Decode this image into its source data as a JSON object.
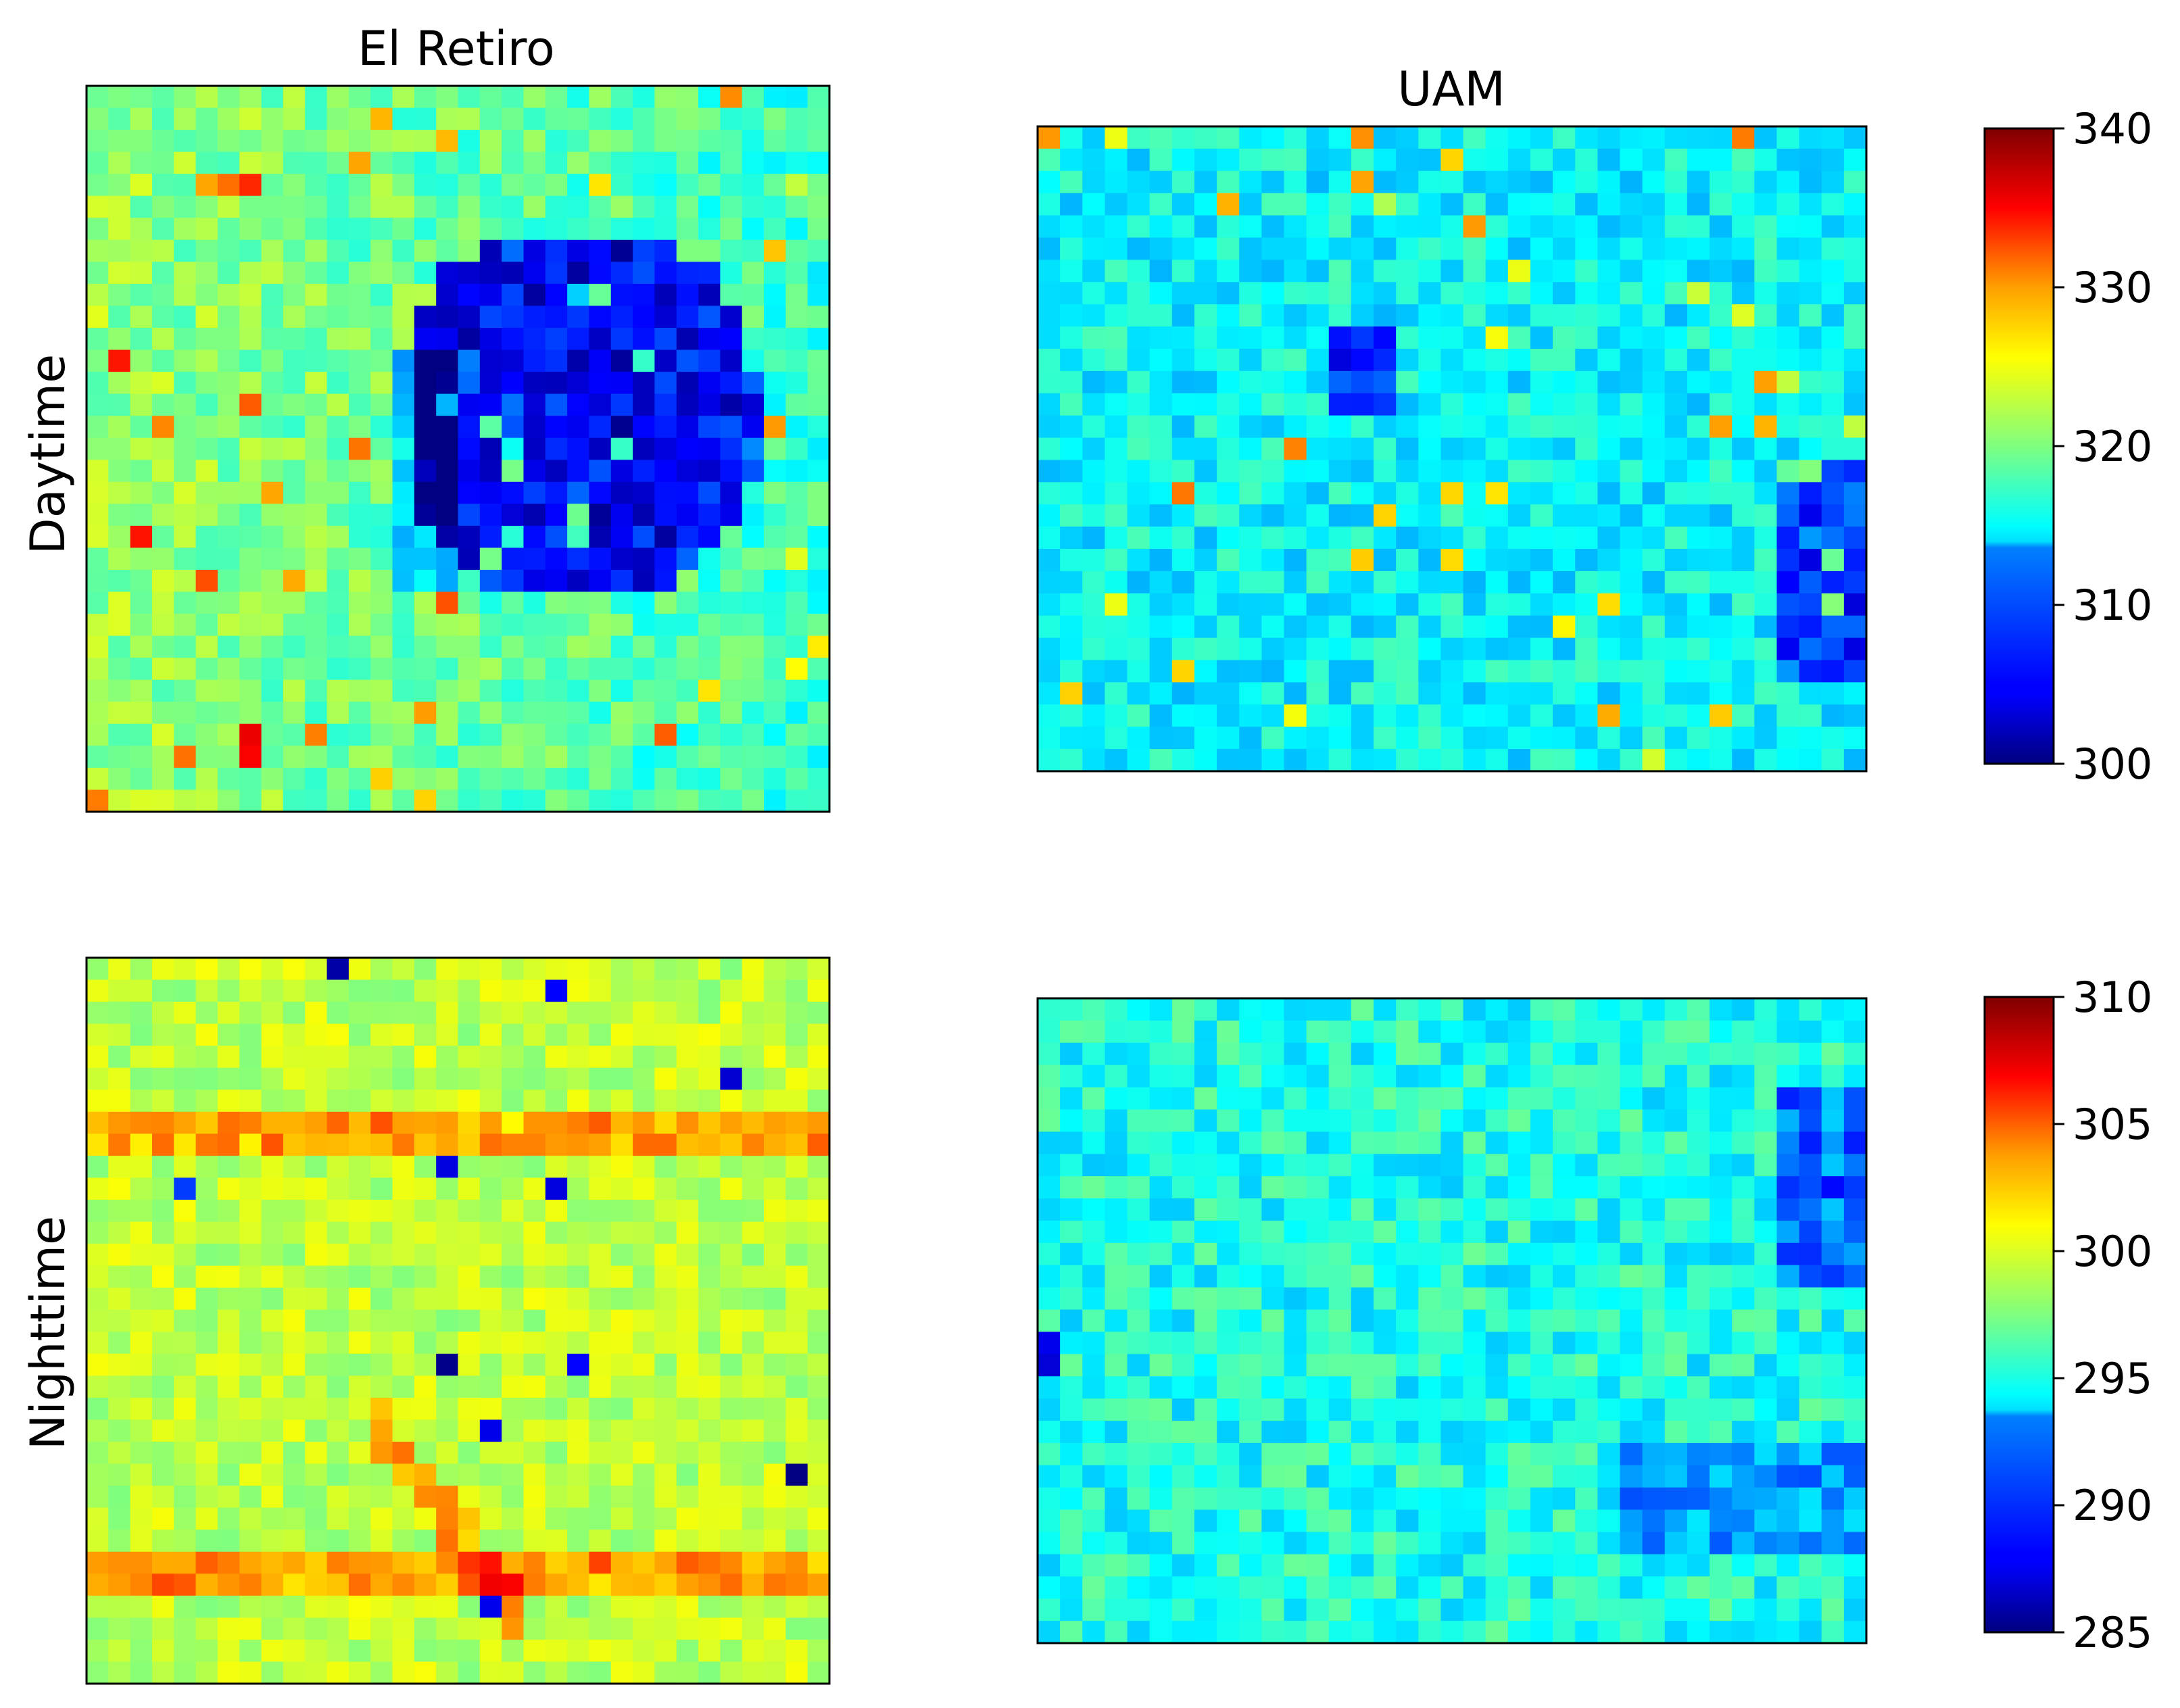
{
  "figure": {
    "col_titles": [
      "El Retiro",
      "UAM"
    ],
    "row_labels": [
      "Daytime",
      "Nighttime"
    ]
  },
  "chart_data": [
    {
      "type": "heatmap",
      "title": "El Retiro",
      "row_label": "Daytime",
      "colormap": "jet",
      "grid_size": [
        34,
        33
      ],
      "vmin": 300,
      "vmax": 340,
      "pattern": "cool park region (~302-308) in center-right surrounded by warmer urban pixels (~317-326) with scattered hot spots up to ~332",
      "cool_region": {
        "x_fraction": [
          0.43,
          0.9
        ],
        "y_fraction": [
          0.2,
          0.7
        ],
        "value": 305
      },
      "background_value": 319
    },
    {
      "type": "heatmap",
      "title": "UAM",
      "colormap": "jet",
      "grid_size": [
        37,
        29
      ],
      "vmin": 300,
      "vmax": 340,
      "pattern": "mostly ~312-319 with cooler patches on the right edge (~306) and a few warm spots (~328)",
      "background_value": 315
    },
    {
      "type": "heatmap",
      "row_label": "Nighttime",
      "colormap": "jet",
      "grid_size": [
        34,
        33
      ],
      "vmin": 285,
      "vmax": 310,
      "pattern": "mostly ~298-301 with warm linear streets (~303-305) and a few cold pixels (~286)",
      "background_value": 299
    },
    {
      "type": "heatmap",
      "colormap": "jet",
      "grid_size": [
        37,
        29
      ],
      "vmin": 285,
      "vmax": 310,
      "pattern": "mostly ~293-297 with cooler patches (~289-291) near edges and one cold block on the left (~286)",
      "background_value": 295
    }
  ],
  "colorbars": [
    {
      "vmin": 300,
      "vmax": 340,
      "ticks": [
        "300",
        "310",
        "320",
        "330",
        "340"
      ]
    },
    {
      "vmin": 285,
      "vmax": 310,
      "ticks": [
        "285",
        "290",
        "295",
        "300",
        "305",
        "310"
      ]
    }
  ]
}
